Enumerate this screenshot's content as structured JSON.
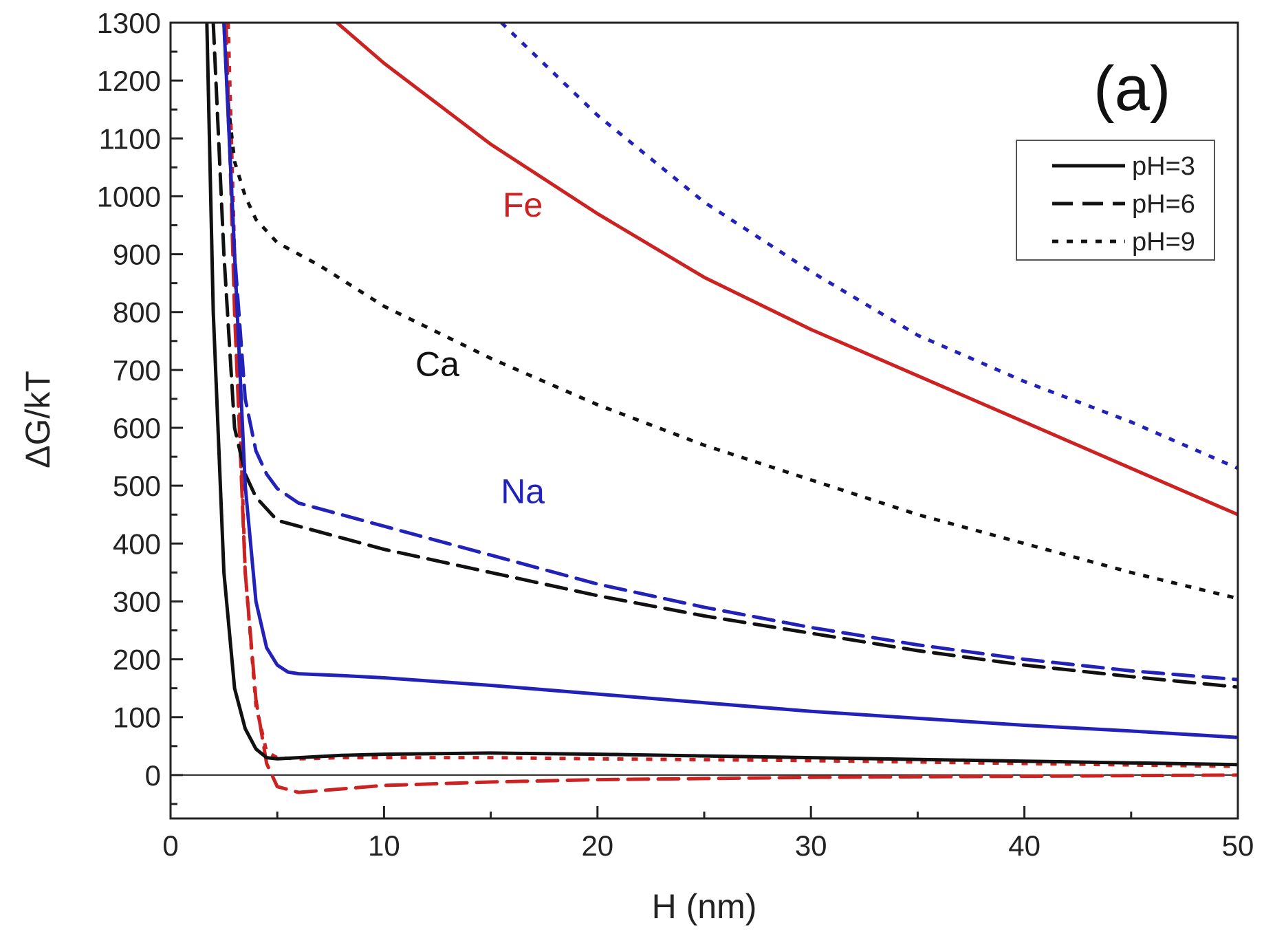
{
  "chart_data": {
    "type": "line",
    "panel_label": "(a)",
    "xlabel": "H (nm)",
    "ylabel": "ΔG/kT",
    "xlim": [
      0,
      50
    ],
    "ylim": [
      -75,
      1300
    ],
    "xticks": [
      0,
      10,
      20,
      30,
      40,
      50
    ],
    "xtick_labels": [
      "0",
      "10",
      "20",
      "30",
      "40",
      "50"
    ],
    "yticks": [
      0,
      100,
      200,
      300,
      400,
      500,
      600,
      700,
      800,
      900,
      1000,
      1100,
      1200,
      1300
    ],
    "ytick_labels": [
      "0",
      "100",
      "200",
      "300",
      "400",
      "500",
      "600",
      "700",
      "800",
      "900",
      "1000",
      "1100",
      "1200",
      "1300"
    ],
    "zero_line": true,
    "legend": {
      "position": "top-right",
      "entries": [
        {
          "label": "pH=3",
          "style": "solid"
        },
        {
          "label": "pH=6",
          "style": "dashed"
        },
        {
          "label": "pH=9",
          "style": "dotted"
        }
      ]
    },
    "annotations": [
      {
        "text": "Fe",
        "color": "#cc2222",
        "x": 16.5,
        "y": 965
      },
      {
        "text": "Ca",
        "color": "#111111",
        "x": 12.5,
        "y": 690
      },
      {
        "text": "Na",
        "color": "#2222bb",
        "x": 16.5,
        "y": 470
      }
    ],
    "series": [
      {
        "name": "Fe pH=3",
        "ion": "Fe",
        "pH": 3,
        "style": "solid",
        "color": "#cc2222",
        "x": [
          7.8,
          10,
          15,
          20,
          25,
          30,
          35,
          40,
          45,
          50
        ],
        "y": [
          1300,
          1230,
          1090,
          970,
          860,
          770,
          690,
          610,
          530,
          450
        ]
      },
      {
        "name": "Fe pH=6",
        "ion": "Fe",
        "pH": 6,
        "style": "dashed",
        "color": "#cc2222",
        "x": [
          2.6,
          3.0,
          3.5,
          4.0,
          4.5,
          5.0,
          6.0,
          8,
          10,
          15,
          20,
          30,
          40,
          50
        ],
        "y": [
          1300,
          800,
          350,
          130,
          20,
          -20,
          -30,
          -24,
          -18,
          -12,
          -8,
          -4,
          -2,
          0
        ]
      },
      {
        "name": "Fe pH=9",
        "ion": "Fe",
        "pH": 9,
        "style": "dotted",
        "color": "#cc2222",
        "x": [
          2.7,
          3.0,
          3.5,
          4.0,
          4.5,
          5.0,
          6,
          8,
          10,
          15,
          20,
          30,
          40,
          50
        ],
        "y": [
          1300,
          900,
          350,
          120,
          40,
          30,
          28,
          30,
          30,
          30,
          28,
          25,
          20,
          15
        ]
      },
      {
        "name": "Ca pH=3",
        "ion": "Ca",
        "pH": 3,
        "style": "solid",
        "color": "#111111",
        "x": [
          1.7,
          2.0,
          2.5,
          3.0,
          3.5,
          4.0,
          4.5,
          5.0,
          6,
          8,
          10,
          15,
          20,
          30,
          40,
          50
        ],
        "y": [
          1300,
          800,
          350,
          150,
          80,
          45,
          30,
          28,
          30,
          34,
          36,
          38,
          36,
          30,
          24,
          18
        ]
      },
      {
        "name": "Ca pH=6",
        "ion": "Ca",
        "pH": 6,
        "style": "dashed",
        "color": "#111111",
        "x": [
          2.0,
          2.5,
          3.0,
          3.5,
          4.0,
          4.5,
          5.0,
          6,
          10,
          15,
          20,
          25,
          30,
          35,
          40,
          45,
          50
        ],
        "y": [
          1300,
          900,
          600,
          520,
          480,
          460,
          440,
          430,
          390,
          350,
          310,
          275,
          245,
          215,
          190,
          170,
          152
        ]
      },
      {
        "name": "Ca pH=9",
        "ion": "Ca",
        "pH": 9,
        "style": "dotted",
        "color": "#111111",
        "x": [
          2.7,
          3.0,
          3.5,
          4.0,
          5.0,
          7,
          10,
          15,
          20,
          25,
          30,
          35,
          40,
          45,
          50
        ],
        "y": [
          1160,
          1060,
          1000,
          960,
          920,
          880,
          810,
          720,
          640,
          570,
          510,
          450,
          400,
          350,
          305
        ]
      },
      {
        "name": "Na pH=3",
        "ion": "Na",
        "pH": 3,
        "style": "solid",
        "color": "#2222bb",
        "x": [
          2.5,
          3.0,
          3.5,
          4.0,
          4.5,
          5.0,
          5.5,
          6,
          8,
          10,
          15,
          20,
          25,
          30,
          35,
          40,
          45,
          50
        ],
        "y": [
          1300,
          900,
          500,
          300,
          220,
          190,
          178,
          175,
          172,
          168,
          155,
          140,
          125,
          110,
          98,
          86,
          76,
          65
        ]
      },
      {
        "name": "Na pH=6",
        "ion": "Na",
        "pH": 6,
        "style": "dashed",
        "color": "#2222bb",
        "x": [
          2.5,
          3.0,
          3.5,
          4.0,
          4.5,
          5.0,
          6,
          10,
          15,
          20,
          25,
          30,
          35,
          40,
          45,
          50
        ],
        "y": [
          1300,
          900,
          650,
          560,
          520,
          495,
          470,
          430,
          380,
          330,
          290,
          255,
          225,
          200,
          180,
          165
        ]
      },
      {
        "name": "Na pH=9",
        "ion": "Na",
        "pH": 9,
        "style": "dotted",
        "color": "#2222bb",
        "x": [
          15.5,
          20,
          25,
          30,
          35,
          40,
          45,
          50
        ],
        "y": [
          1300,
          1140,
          990,
          870,
          760,
          680,
          610,
          530
        ]
      }
    ]
  }
}
